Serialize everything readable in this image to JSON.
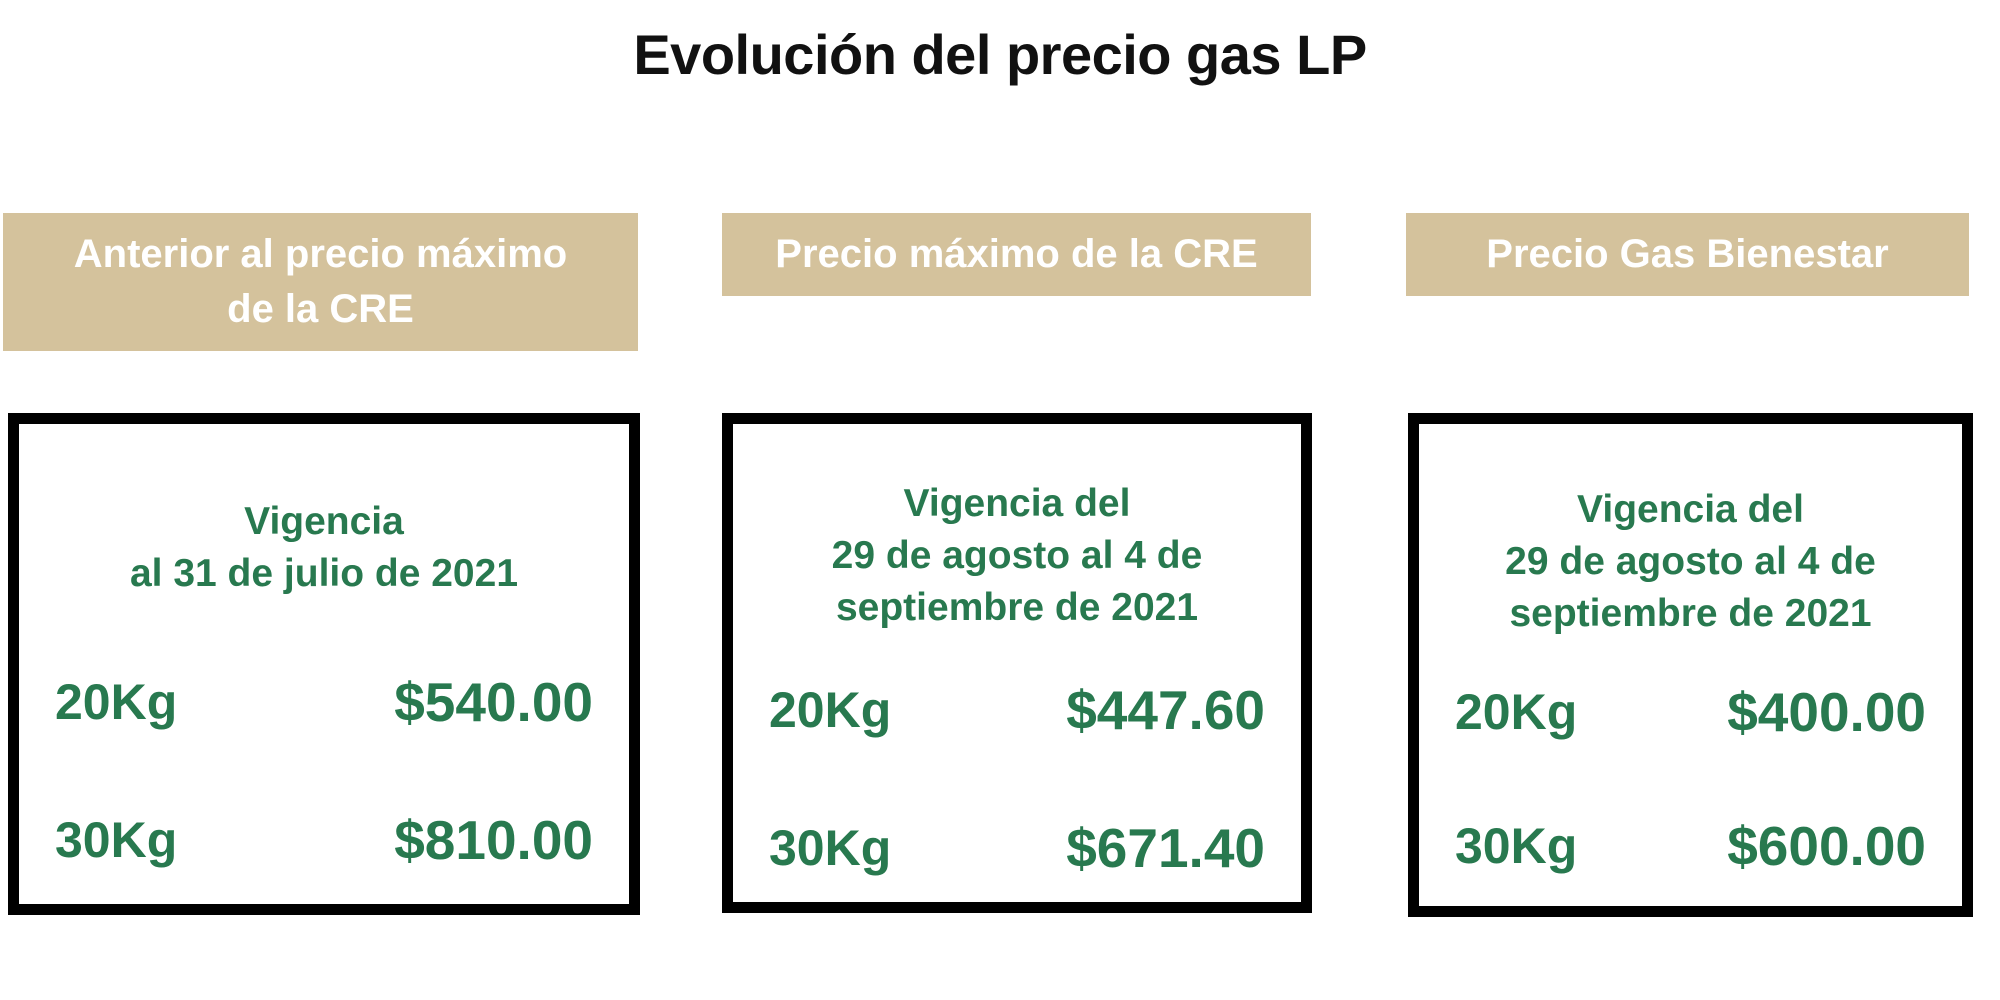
{
  "title": "Evolución del precio gas LP",
  "colors": {
    "header_bg": "#d4c29c",
    "header_text": "#ffffff",
    "accent_green": "#28794f",
    "card_border": "#000000",
    "title_text": "#111111"
  },
  "panels": [
    {
      "header": [
        "Anterior al precio máximo",
        "de la CRE"
      ],
      "vigencia": [
        "Vigencia",
        "al 31 de julio de 2021"
      ],
      "rows": [
        {
          "weight": "20Kg",
          "price": "$540.00"
        },
        {
          "weight": "30Kg",
          "price": "$810.00"
        }
      ]
    },
    {
      "header": [
        "Precio máximo de la CRE"
      ],
      "vigencia": [
        "Vigencia del",
        "29 de agosto al 4 de",
        "septiembre de 2021"
      ],
      "rows": [
        {
          "weight": "20Kg",
          "price": "$447.60"
        },
        {
          "weight": "30Kg",
          "price": "$671.40"
        }
      ]
    },
    {
      "header": [
        "Precio Gas Bienestar"
      ],
      "vigencia": [
        "Vigencia del",
        "29 de agosto al 4 de",
        "septiembre de 2021"
      ],
      "rows": [
        {
          "weight": "20Kg",
          "price": "$400.00"
        },
        {
          "weight": "30Kg",
          "price": "$600.00"
        }
      ]
    }
  ]
}
